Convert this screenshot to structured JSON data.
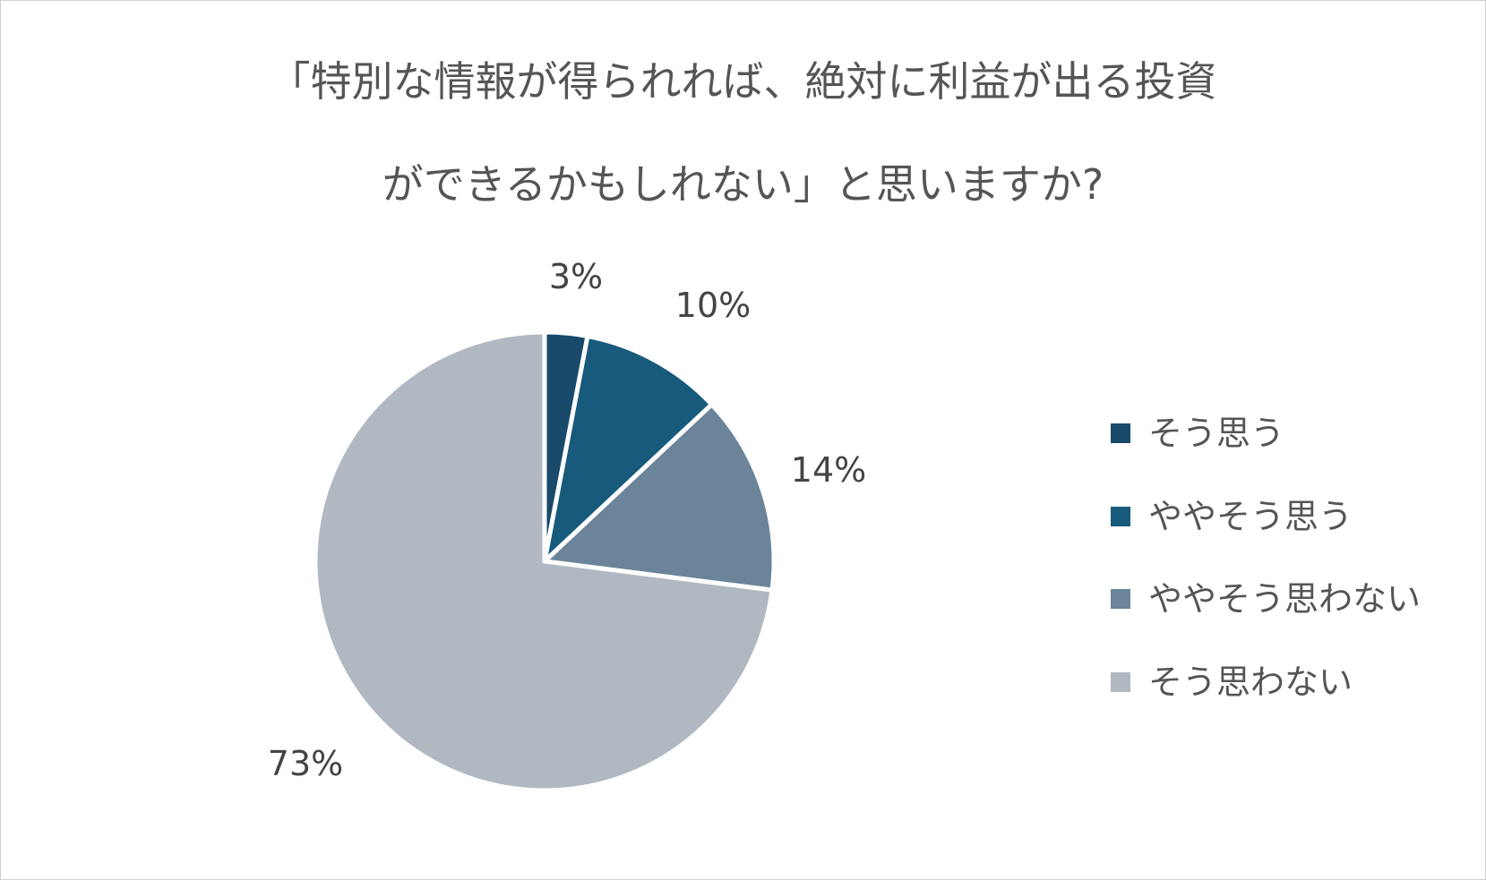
{
  "title_lines": [
    "「特別な情報が得られれば、絶対に利益が出る投資",
    "ができるかもしれない」と思いますか?"
  ],
  "chart_data": {
    "type": "pie",
    "categories": [
      "そう思う",
      "ややそう思う",
      "ややそう思わない",
      "そう思わない"
    ],
    "values": [
      3,
      10,
      14,
      73
    ],
    "labels": [
      "3%",
      "10%",
      "14%",
      "73%"
    ],
    "colors": [
      "#1a4a6b",
      "#175a7c",
      "#6b8499",
      "#b0b8c2"
    ],
    "start_angle": "12 o'clock",
    "direction": "clockwise",
    "legend_position": "right"
  }
}
